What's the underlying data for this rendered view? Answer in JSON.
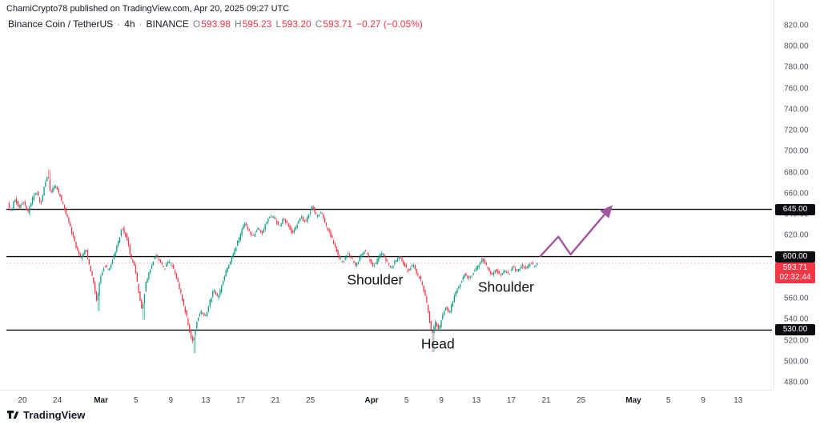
{
  "attribution": "ChamiCrypto78 published on TradingView.com, Apr 20, 2025 09:27 UTC",
  "legend": {
    "symbol": "Binance Coin / TetherUS",
    "separator": "·",
    "interval": "4h",
    "exchange": "BINANCE",
    "o_label": "O",
    "open": "593.98",
    "h_label": "H",
    "high": "595.23",
    "l_label": "L",
    "low": "593.20",
    "c_label": "C",
    "close": "593.71",
    "change": "−0.27 (−0.05%)"
  },
  "footer": {
    "brand": "TradingView"
  },
  "chart_data": {
    "type": "candlestick",
    "symbol": "Binance Coin / TetherUS",
    "interval": "4h",
    "exchange": "BINANCE",
    "t_start": -1.6,
    "t_end": 59.05,
    "colors": {
      "up": "#089981",
      "down": "#f23645",
      "level": "#0a0a0a"
    },
    "y_axis": {
      "min": 480,
      "max": 820,
      "step": 20,
      "ticks": [
        "820.00",
        "800.00",
        "780.00",
        "760.00",
        "740.00",
        "720.00",
        "700.00",
        "680.00",
        "660.00",
        "640.00",
        "620.00",
        "600.00",
        "580.00",
        "560.00",
        "540.00",
        "520.00",
        "500.00",
        "480.00"
      ]
    },
    "x_axis": {
      "ticks": [
        {
          "label": "20",
          "t": 0
        },
        {
          "label": "24",
          "t": 4
        },
        {
          "label": "Mar",
          "t": 9,
          "month": true
        },
        {
          "label": "5",
          "t": 13
        },
        {
          "label": "9",
          "t": 17
        },
        {
          "label": "13",
          "t": 21
        },
        {
          "label": "17",
          "t": 25
        },
        {
          "label": "21",
          "t": 29
        },
        {
          "label": "25",
          "t": 33
        },
        {
          "label": "Apr",
          "t": 40,
          "month": true
        },
        {
          "label": "5",
          "t": 44
        },
        {
          "label": "9",
          "t": 48
        },
        {
          "label": "13",
          "t": 52
        },
        {
          "label": "17",
          "t": 56
        },
        {
          "label": "21",
          "t": 60
        },
        {
          "label": "25",
          "t": 64
        },
        {
          "label": "May",
          "t": 70,
          "month": true
        },
        {
          "label": "5",
          "t": 74
        },
        {
          "label": "9",
          "t": 78
        },
        {
          "label": "13",
          "t": 82
        }
      ]
    },
    "levels": [
      {
        "price": 645,
        "label": "645.00"
      },
      {
        "price": 600,
        "label": "600.00"
      },
      {
        "price": 530,
        "label": "530.00"
      }
    ],
    "last_price": {
      "value": 593.71,
      "label": "593.71",
      "countdown": "02:32:44"
    },
    "annotations": [
      {
        "text": "Shoulder",
        "t": 40.4,
        "p": 577
      },
      {
        "text": "Head",
        "t": 47.6,
        "p": 516
      },
      {
        "text": "Shoulder",
        "t": 55.4,
        "p": 570
      }
    ],
    "projection": {
      "color": "#a056a0",
      "points": [
        [
          59.3,
          600
        ],
        [
          61.4,
          619
        ],
        [
          62.8,
          602
        ],
        [
          67.4,
          647
        ]
      ]
    },
    "spikes": [
      {
        "t": 3.0,
        "high": 683
      },
      {
        "t": 8.6,
        "low": 548
      },
      {
        "t": 13.8,
        "low": 540
      },
      {
        "t": 19.6,
        "low": 508
      },
      {
        "t": 47.0,
        "low": 509
      }
    ],
    "price_path": [
      [
        -1.6,
        650
      ],
      [
        -1.2,
        642
      ],
      [
        -0.8,
        656
      ],
      [
        -0.3,
        645
      ],
      [
        0.2,
        653
      ],
      [
        0.7,
        641
      ],
      [
        1.2,
        655
      ],
      [
        1.7,
        662
      ],
      [
        2.2,
        650
      ],
      [
        2.6,
        668
      ],
      [
        3.0,
        678
      ],
      [
        3.3,
        660
      ],
      [
        3.8,
        668
      ],
      [
        4.2,
        662
      ],
      [
        4.8,
        648
      ],
      [
        5.5,
        630
      ],
      [
        6.2,
        610
      ],
      [
        6.8,
        598
      ],
      [
        7.3,
        608
      ],
      [
        7.8,
        590
      ],
      [
        8.3,
        572
      ],
      [
        8.6,
        556
      ],
      [
        9.0,
        580
      ],
      [
        9.5,
        592
      ],
      [
        10.0,
        586
      ],
      [
        10.5,
        600
      ],
      [
        11.0,
        612
      ],
      [
        11.5,
        628
      ],
      [
        12.0,
        618
      ],
      [
        12.5,
        600
      ],
      [
        13.0,
        588
      ],
      [
        13.4,
        566
      ],
      [
        13.8,
        548
      ],
      [
        14.2,
        574
      ],
      [
        14.8,
        590
      ],
      [
        15.3,
        602
      ],
      [
        15.8,
        596
      ],
      [
        16.3,
        588
      ],
      [
        16.8,
        596
      ],
      [
        17.3,
        590
      ],
      [
        17.8,
        578
      ],
      [
        18.3,
        562
      ],
      [
        18.8,
        546
      ],
      [
        19.2,
        530
      ],
      [
        19.6,
        518
      ],
      [
        20.0,
        536
      ],
      [
        20.5,
        548
      ],
      [
        21.0,
        542
      ],
      [
        21.5,
        556
      ],
      [
        22.0,
        568
      ],
      [
        22.5,
        560
      ],
      [
        23.0,
        576
      ],
      [
        23.5,
        588
      ],
      [
        24.0,
        598
      ],
      [
        24.5,
        608
      ],
      [
        25.0,
        620
      ],
      [
        25.5,
        632
      ],
      [
        26.0,
        626
      ],
      [
        26.5,
        618
      ],
      [
        27.0,
        628
      ],
      [
        27.5,
        622
      ],
      [
        28.0,
        632
      ],
      [
        28.5,
        640
      ],
      [
        29.0,
        636
      ],
      [
        29.5,
        628
      ],
      [
        30.0,
        636
      ],
      [
        30.5,
        630
      ],
      [
        31.0,
        622
      ],
      [
        31.5,
        630
      ],
      [
        32.0,
        638
      ],
      [
        32.5,
        632
      ],
      [
        33.0,
        642
      ],
      [
        33.3,
        648
      ],
      [
        33.8,
        638
      ],
      [
        34.3,
        644
      ],
      [
        34.8,
        630
      ],
      [
        35.3,
        622
      ],
      [
        35.8,
        612
      ],
      [
        36.3,
        600
      ],
      [
        36.8,
        594
      ],
      [
        37.3,
        604
      ],
      [
        37.8,
        598
      ],
      [
        38.3,
        590
      ],
      [
        38.8,
        600
      ],
      [
        39.3,
        606
      ],
      [
        39.8,
        598
      ],
      [
        40.3,
        590
      ],
      [
        40.8,
        598
      ],
      [
        41.3,
        604
      ],
      [
        41.8,
        596
      ],
      [
        42.3,
        588
      ],
      [
        42.8,
        596
      ],
      [
        43.3,
        600
      ],
      [
        43.8,
        592
      ],
      [
        44.3,
        586
      ],
      [
        44.8,
        592
      ],
      [
        45.3,
        584
      ],
      [
        45.8,
        576
      ],
      [
        46.3,
        560
      ],
      [
        46.7,
        540
      ],
      [
        47.0,
        524
      ],
      [
        47.4,
        538
      ],
      [
        47.8,
        530
      ],
      [
        48.2,
        544
      ],
      [
        48.6,
        552
      ],
      [
        49.0,
        546
      ],
      [
        49.4,
        558
      ],
      [
        49.8,
        568
      ],
      [
        50.3,
        576
      ],
      [
        50.8,
        584
      ],
      [
        51.3,
        578
      ],
      [
        51.8,
        586
      ],
      [
        52.3,
        592
      ],
      [
        52.8,
        598
      ],
      [
        53.3,
        590
      ],
      [
        53.8,
        582
      ],
      [
        54.3,
        588
      ],
      [
        54.8,
        582
      ],
      [
        55.3,
        588
      ],
      [
        55.8,
        584
      ],
      [
        56.3,
        590
      ],
      [
        56.8,
        586
      ],
      [
        57.3,
        592
      ],
      [
        57.8,
        588
      ],
      [
        58.3,
        594
      ],
      [
        58.7,
        590
      ],
      [
        59.0,
        593.7
      ]
    ]
  }
}
